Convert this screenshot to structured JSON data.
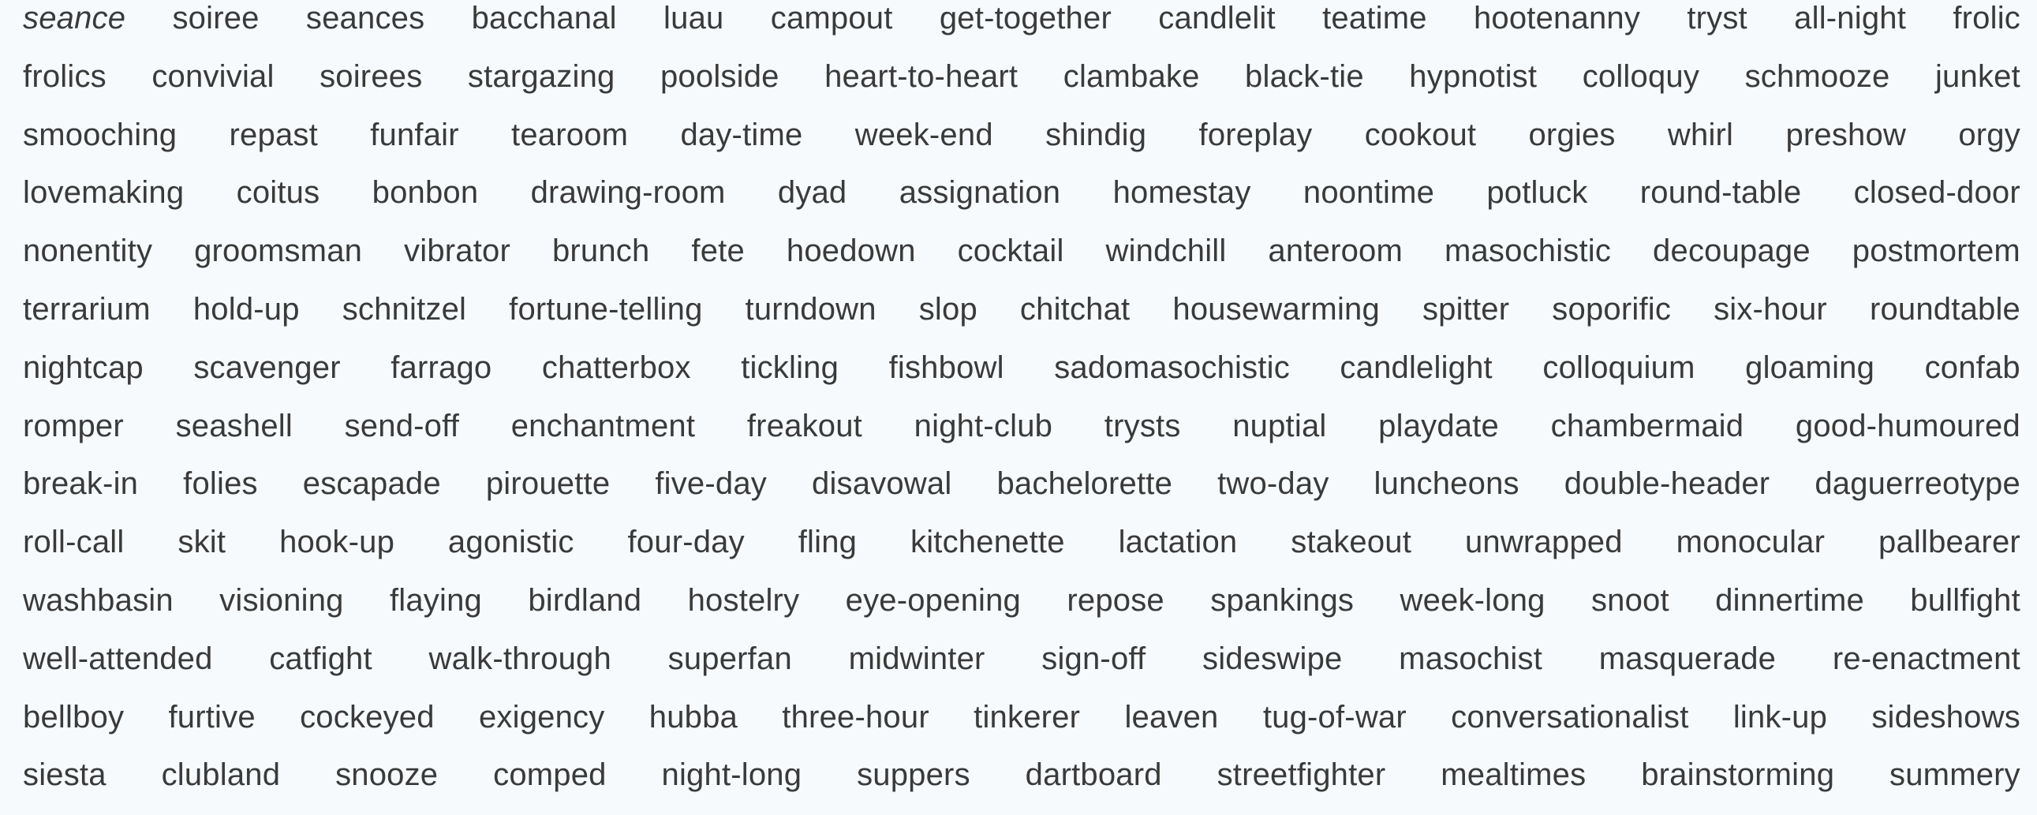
{
  "word_list": {
    "rows": [
      [
        "seance",
        "soiree",
        "seances",
        "bacchanal",
        "luau",
        "campout",
        "get-together",
        "candlelit",
        "teatime",
        "hootenanny",
        "tryst",
        "all-night",
        "frolic"
      ],
      [
        "frolics",
        "convivial",
        "soirees",
        "stargazing",
        "poolside",
        "heart-to-heart",
        "clambake",
        "black-tie",
        "hypnotist",
        "colloquy",
        "schmooze",
        "junket"
      ],
      [
        "smooching",
        "repast",
        "funfair",
        "tearoom",
        "day-time",
        "week-end",
        "shindig",
        "foreplay",
        "cookout",
        "orgies",
        "whirl",
        "preshow",
        "orgy"
      ],
      [
        "lovemaking",
        "coitus",
        "bonbon",
        "drawing-room",
        "dyad",
        "assignation",
        "homestay",
        "noontime",
        "potluck",
        "round-table",
        "closed-door"
      ],
      [
        "nonentity",
        "groomsman",
        "vibrator",
        "brunch",
        "fete",
        "hoedown",
        "cocktail",
        "windchill",
        "anteroom",
        "masochistic",
        "decoupage",
        "postmortem"
      ],
      [
        "terrarium",
        "hold-up",
        "schnitzel",
        "fortune-telling",
        "turndown",
        "slop",
        "chitchat",
        "housewarming",
        "spitter",
        "soporific",
        "six-hour",
        "roundtable"
      ],
      [
        "nightcap",
        "scavenger",
        "farrago",
        "chatterbox",
        "tickling",
        "fishbowl",
        "sadomasochistic",
        "candlelight",
        "colloquium",
        "gloaming",
        "confab"
      ],
      [
        "romper",
        "seashell",
        "send-off",
        "enchantment",
        "freakout",
        "night-club",
        "trysts",
        "nuptial",
        "playdate",
        "chambermaid",
        "good-humoured"
      ],
      [
        "break-in",
        "folies",
        "escapade",
        "pirouette",
        "five-day",
        "disavowal",
        "bachelorette",
        "two-day",
        "luncheons",
        "double-header",
        "daguerreotype"
      ],
      [
        "roll-call",
        "skit",
        "hook-up",
        "agonistic",
        "four-day",
        "fling",
        "kitchenette",
        "lactation",
        "stakeout",
        "unwrapped",
        "monocular",
        "pallbearer"
      ],
      [
        "washbasin",
        "visioning",
        "flaying",
        "birdland",
        "hostelry",
        "eye-opening",
        "repose",
        "spankings",
        "week-long",
        "snoot",
        "dinnertime",
        "bullfight"
      ],
      [
        "well-attended",
        "catfight",
        "walk-through",
        "superfan",
        "midwinter",
        "sign-off",
        "sideswipe",
        "masochist",
        "masquerade",
        "re-enactment"
      ],
      [
        "bellboy",
        "furtive",
        "cockeyed",
        "exigency",
        "hubba",
        "three-hour",
        "tinkerer",
        "leaven",
        "tug-of-war",
        "conversationalist",
        "link-up",
        "sideshows"
      ],
      [
        "siesta",
        "clubland",
        "snooze",
        "comped",
        "night-long",
        "suppers",
        "dartboard",
        "streetfighter",
        "mealtimes",
        "brainstorming",
        "summery"
      ]
    ],
    "italic_words": [
      [
        0,
        0
      ]
    ]
  }
}
